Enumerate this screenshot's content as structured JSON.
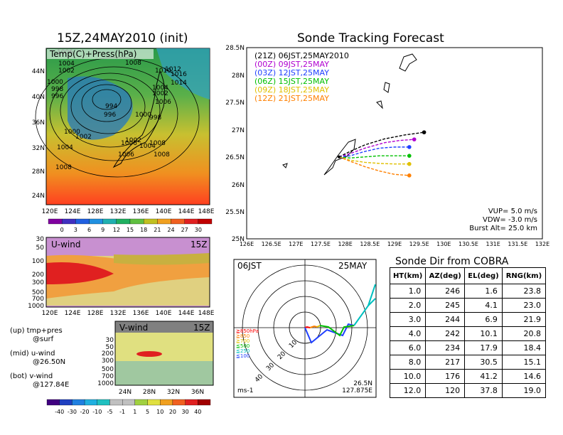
{
  "left": {
    "init_title": "15Z,24MAY2010 (init)",
    "map": {
      "overlay_label": "Temp(C)+Press(hPa)",
      "y_ticks": [
        "44N",
        "40N",
        "36N",
        "32N",
        "28N",
        "24N"
      ],
      "x_ticks": [
        "120E",
        "124E",
        "128E",
        "132E",
        "136E",
        "140E",
        "144E",
        "148E"
      ],
      "contour_labels": [
        "1006",
        "1004",
        "1002",
        "1008",
        "1000",
        "998",
        "996",
        "994",
        "1010",
        "1012",
        "1016",
        "1014",
        "1004",
        "1002",
        "1006",
        "1000",
        "998",
        "996",
        "1000",
        "1002",
        "1004",
        "1006",
        "1008",
        "1004",
        "1002",
        "1006",
        "1008",
        "1008"
      ]
    },
    "temp_colorbar": [
      "0",
      "3",
      "6",
      "9",
      "12",
      "15",
      "18",
      "21",
      "24",
      "27",
      "30"
    ],
    "uwind": {
      "label": "U-wind",
      "time": "15Z",
      "y_ticks": [
        "30",
        "50",
        "100",
        "200",
        "300",
        "500",
        "700",
        "1000"
      ],
      "x_ticks": [
        "120E",
        "124E",
        "128E",
        "132E",
        "136E",
        "140E",
        "144E",
        "148E"
      ]
    },
    "vwind": {
      "label": "V-wind",
      "time": "15Z",
      "y_ticks": [
        "30",
        "50",
        "100",
        "200",
        "300",
        "500",
        "700",
        "1000"
      ],
      "x_ticks": [
        "24N",
        "28N",
        "32N",
        "36N"
      ]
    },
    "notes": {
      "up1": "(up) tmp+pres",
      "up2": "@surf",
      "mid1": "(mid) u-wind",
      "mid2": "@26.50N",
      "bot1": "(bot) v-wind",
      "bot2": "@127.84E"
    },
    "wind_colorbar": [
      "-40",
      "-30",
      "-20",
      "-10",
      "-5",
      "-1",
      "1",
      "5",
      "10",
      "20",
      "30",
      "40"
    ]
  },
  "tracking": {
    "title": "Sonde Tracking Forecast",
    "legend": [
      {
        "text": "(21Z) 06JST,25MAY2010",
        "color": "#000000"
      },
      {
        "text": "(00Z) 09JST,25MAY",
        "color": "#b000d0"
      },
      {
        "text": "(03Z) 12JST,25MAY",
        "color": "#2040ff"
      },
      {
        "text": "(06Z) 15JST,25MAY",
        "color": "#00c000"
      },
      {
        "text": "(09Z) 18JST,25MAY",
        "color": "#e0c000"
      },
      {
        "text": "(12Z) 21JST,25MAY",
        "color": "#ff8000"
      }
    ],
    "y_ticks": [
      "28.5N",
      "28N",
      "27.5N",
      "27N",
      "26.5N",
      "26N",
      "25.5N",
      "25N"
    ],
    "x_ticks": [
      "126E",
      "126.5E",
      "127E",
      "127.5E",
      "128E",
      "128.5E",
      "129E",
      "129.5E",
      "130E",
      "130.5E",
      "131E",
      "131.5E",
      "132E"
    ],
    "vup": "VUP=  5.0  m/s",
    "vdw": "VDW= -3.0  m/s",
    "burst": "Burst Alt=  25.0  km"
  },
  "chart_data": {
    "type": "line",
    "title": "Sonde Tracking Forecast",
    "xlabel": "",
    "ylabel": "",
    "xlim": [
      126,
      132
    ],
    "ylim": [
      25,
      28.5
    ],
    "launch": {
      "lon": 127.875,
      "lat": 26.5
    },
    "series": [
      {
        "name": "(21Z) 06JST,25MAY2010",
        "x": [
          127.875,
          128.1,
          128.4,
          128.8,
          129.2,
          129.6
        ],
        "y": [
          26.5,
          26.6,
          26.72,
          26.83,
          26.9,
          26.95
        ]
      },
      {
        "name": "(00Z) 09JST,25MAY",
        "x": [
          127.875,
          128.1,
          128.4,
          128.8,
          129.1,
          129.4
        ],
        "y": [
          26.5,
          26.56,
          26.66,
          26.76,
          26.8,
          26.82
        ]
      },
      {
        "name": "(03Z) 12JST,25MAY",
        "x": [
          127.875,
          128.1,
          128.4,
          128.7,
          129.0,
          129.3
        ],
        "y": [
          26.5,
          26.52,
          26.6,
          26.66,
          26.68,
          26.68
        ]
      },
      {
        "name": "(06Z) 15JST,25MAY",
        "x": [
          127.875,
          128.1,
          128.4,
          128.7,
          129.0,
          129.3
        ],
        "y": [
          26.5,
          26.48,
          26.5,
          26.52,
          26.52,
          26.52
        ]
      },
      {
        "name": "(09Z) 18JST,25MAY",
        "x": [
          127.875,
          128.1,
          128.4,
          128.7,
          129.0,
          129.3
        ],
        "y": [
          26.5,
          26.44,
          26.4,
          26.38,
          26.37,
          26.37
        ]
      },
      {
        "name": "(12Z) 21JST,25MAY",
        "x": [
          127.875,
          128.1,
          128.4,
          128.7,
          129.0,
          129.3
        ],
        "y": [
          26.5,
          26.42,
          26.32,
          26.24,
          26.18,
          26.16
        ]
      }
    ]
  },
  "polar": {
    "time_label": "06JST",
    "date_label": "25MAY",
    "unit": "ms-1",
    "loc_lat": "26.5N",
    "loc_lon": "127.875E",
    "ring_labels": [
      "10",
      "20",
      "30",
      "40"
    ],
    "height_legend": [
      {
        "text": "≧850hPa",
        "color": "#ff0000"
      },
      {
        "text": "≧850",
        "color": "#ff8000"
      },
      {
        "text": "≧700",
        "color": "#e0c000"
      },
      {
        "text": "≦500",
        "color": "#00c000"
      },
      {
        "text": "≦250",
        "color": "#00c0c0"
      },
      {
        "text": "≦100",
        "color": "#2040ff"
      }
    ]
  },
  "cobra": {
    "title": "Sonde Dir from COBRA",
    "headers": [
      "HT(km)",
      "AZ(deg)",
      "EL(deg)",
      "RNG(km)"
    ],
    "rows": [
      [
        "1.0",
        "246",
        "1.6",
        "23.8"
      ],
      [
        "2.0",
        "245",
        "4.1",
        "23.0"
      ],
      [
        "3.0",
        "244",
        "6.9",
        "21.9"
      ],
      [
        "4.0",
        "242",
        "10.1",
        "20.8"
      ],
      [
        "6.0",
        "234",
        "17.9",
        "18.4"
      ],
      [
        "8.0",
        "217",
        "30.5",
        "15.1"
      ],
      [
        "10.0",
        "176",
        "41.2",
        "14.6"
      ],
      [
        "12.0",
        "120",
        "37.8",
        "19.0"
      ]
    ]
  }
}
